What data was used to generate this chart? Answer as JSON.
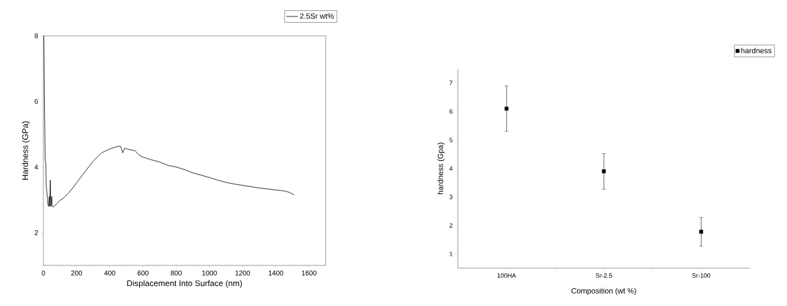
{
  "chart_data": [
    {
      "type": "line",
      "xlabel": "Displacement Into Surface (nm)",
      "ylabel": "Hardness (GPa)",
      "xlim": [
        0,
        1700
      ],
      "ylim": [
        1,
        8
      ],
      "xticks": [
        0,
        200,
        400,
        600,
        800,
        1000,
        1200,
        1400,
        1600
      ],
      "yticks": [
        2,
        4,
        6,
        8
      ],
      "legend": "top right",
      "marker": "none",
      "series": [
        {
          "name": "2.5Sr wt%",
          "color": "#000000",
          "x": [
            3,
            6,
            11,
            15,
            17,
            20,
            24,
            28,
            32,
            35,
            38,
            42,
            45,
            50,
            53,
            60,
            100,
            120,
            150,
            180,
            200,
            250,
            300,
            350,
            400,
            450,
            465,
            478,
            490,
            500,
            550,
            580,
            600,
            650,
            700,
            750,
            800,
            850,
            900,
            950,
            1000,
            1050,
            1100,
            1150,
            1200,
            1250,
            1300,
            1350,
            1400,
            1450,
            1480,
            1510
          ],
          "values": [
            8,
            6.0,
            4.2,
            4.1,
            3.4,
            3.3,
            3.05,
            2.85,
            2.8,
            3.1,
            2.8,
            3.6,
            2.8,
            3.1,
            2.8,
            2.78,
            2.98,
            3.05,
            3.2,
            3.38,
            3.52,
            3.85,
            4.18,
            4.43,
            4.55,
            4.63,
            4.63,
            4.43,
            4.58,
            4.55,
            4.5,
            4.35,
            4.3,
            4.22,
            4.15,
            4.05,
            4.0,
            3.92,
            3.82,
            3.75,
            3.68,
            3.6,
            3.53,
            3.48,
            3.44,
            3.4,
            3.36,
            3.33,
            3.3,
            3.27,
            3.23,
            3.15
          ]
        }
      ]
    },
    {
      "type": "scatter",
      "xlabel": "Composition (wt %)",
      "ylabel": "hardness (Gpa)",
      "categories": [
        "100HA",
        "Sr-2.5",
        "Sr-100"
      ],
      "ylim": [
        0.5,
        7.5
      ],
      "yticks": [
        1,
        2,
        3,
        4,
        5,
        6,
        7
      ],
      "legend": "top right",
      "marker": "square",
      "series": [
        {
          "name": "hardness",
          "color": "#000000",
          "values": [
            6.1,
            3.9,
            1.78
          ],
          "errors": [
            [
              5.3,
              6.9
            ],
            [
              3.27,
              4.52
            ],
            [
              1.27,
              2.28
            ]
          ]
        }
      ]
    }
  ]
}
